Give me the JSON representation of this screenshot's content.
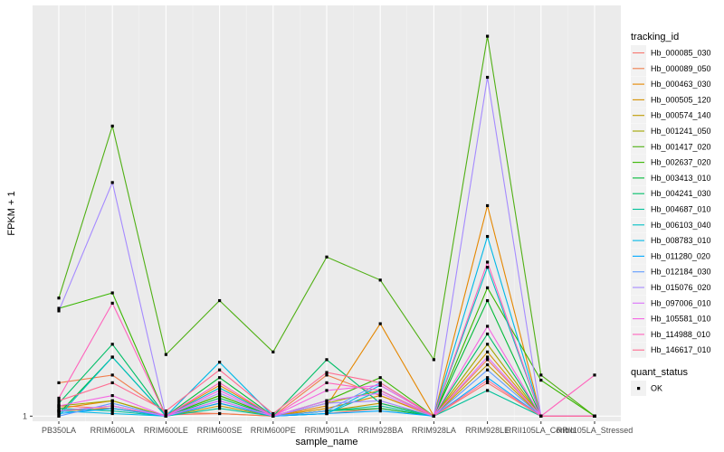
{
  "chart_data": {
    "type": "line",
    "title": "",
    "xlabel": "sample_name",
    "ylabel": "FPKM + 1",
    "y_tick_labels": [
      {
        "value": 1,
        "label": "1"
      }
    ],
    "ylim": [
      0.8,
      17.0
    ],
    "grid": true,
    "legend_placement": "right",
    "categories": [
      "PB350LA",
      "RRIM600LA",
      "RRIM600LE",
      "RRIM600SE",
      "RRIM600PE",
      "RRIM901LA",
      "RRIM928BA",
      "RRIM928LA",
      "RRIM928LE",
      "RRII105LA_Control",
      "RRII105LA_Stressed"
    ],
    "legend": {
      "color_title": "tracking_id",
      "shape_title": "quant_status",
      "shape_entries": [
        "OK"
      ]
    },
    "series": [
      {
        "name": "Hb_000085_030",
        "color": "#F8766D",
        "values": [
          1.4,
          1.3,
          1.05,
          1.1,
          1.0,
          1.1,
          1.3,
          1.0,
          2.3,
          1.0,
          1.0
        ]
      },
      {
        "name": "Hb_000089_050",
        "color": "#F07E4E",
        "values": [
          2.3,
          2.6,
          1.15,
          1.1,
          1.0,
          2.6,
          1.8,
          1.0,
          3.2,
          1.0,
          1.0
        ]
      },
      {
        "name": "Hb_000463_030",
        "color": "#E58700",
        "values": [
          1.3,
          1.6,
          1.0,
          2.2,
          1.0,
          1.4,
          4.6,
          1.0,
          9.2,
          1.0,
          1.0
        ]
      },
      {
        "name": "Hb_000505_120",
        "color": "#D59000",
        "values": [
          1.2,
          1.3,
          1.0,
          1.5,
          1.0,
          1.3,
          1.8,
          1.0,
          3.5,
          1.0,
          1.0
        ]
      },
      {
        "name": "Hb_000574_140",
        "color": "#BF9A00",
        "values": [
          1.2,
          1.4,
          1.0,
          1.4,
          1.0,
          1.2,
          1.5,
          1.0,
          3.0,
          1.0,
          1.0
        ]
      },
      {
        "name": "Hb_001241_050",
        "color": "#A3A500",
        "values": [
          1.4,
          1.6,
          1.0,
          1.8,
          1.0,
          1.5,
          2.0,
          1.0,
          3.8,
          1.0,
          1.0
        ]
      },
      {
        "name": "Hb_001417_020",
        "color": "#50B014",
        "values": [
          5.6,
          12.3,
          3.4,
          5.5,
          3.5,
          7.2,
          6.3,
          3.2,
          15.8,
          2.6,
          1.0
        ]
      },
      {
        "name": "Hb_002637_020",
        "color": "#39B600",
        "values": [
          5.2,
          5.8,
          1.0,
          1.8,
          1.0,
          1.6,
          2.5,
          1.0,
          6.0,
          2.4,
          1.0
        ]
      },
      {
        "name": "Hb_003413_010",
        "color": "#00BA38",
        "values": [
          1.1,
          3.3,
          1.0,
          2.5,
          1.0,
          1.2,
          1.3,
          1.0,
          5.5,
          1.0,
          1.0
        ]
      },
      {
        "name": "Hb_004241_030",
        "color": "#00BE67",
        "values": [
          1.5,
          3.8,
          1.0,
          1.7,
          1.0,
          3.2,
          1.5,
          1.0,
          4.2,
          1.0,
          1.0
        ]
      },
      {
        "name": "Hb_004687_010",
        "color": "#00C19A",
        "values": [
          1.3,
          1.2,
          1.0,
          1.3,
          1.0,
          1.2,
          1.4,
          1.0,
          2.0,
          1.0,
          1.0
        ]
      },
      {
        "name": "Hb_006103_040",
        "color": "#00BFC4",
        "values": [
          1.0,
          3.3,
          1.0,
          2.1,
          1.0,
          1.1,
          2.0,
          1.0,
          6.8,
          1.0,
          1.0
        ]
      },
      {
        "name": "Hb_008783_010",
        "color": "#00B8E7",
        "values": [
          1.2,
          1.1,
          1.0,
          3.1,
          1.0,
          1.1,
          2.2,
          1.0,
          8.0,
          1.0,
          1.0
        ]
      },
      {
        "name": "Hb_011280_020",
        "color": "#00A9FF",
        "values": [
          1.1,
          1.3,
          1.0,
          1.5,
          1.0,
          1.1,
          1.2,
          1.0,
          2.5,
          1.0,
          1.0
        ]
      },
      {
        "name": "Hb_012184_030",
        "color": "#619CFF",
        "values": [
          1.0,
          1.5,
          1.0,
          1.6,
          1.0,
          1.2,
          2.3,
          1.0,
          2.8,
          1.0,
          1.0
        ]
      },
      {
        "name": "Hb_015076_020",
        "color": "#A58AFF",
        "values": [
          5.1,
          10.1,
          1.0,
          1.9,
          1.0,
          1.5,
          1.6,
          1.0,
          14.2,
          1.0,
          1.0
        ]
      },
      {
        "name": "Hb_097006_010",
        "color": "#DB72FB",
        "values": [
          1.2,
          1.4,
          1.0,
          1.6,
          1.0,
          1.6,
          1.9,
          1.0,
          3.3,
          1.0,
          1.0
        ]
      },
      {
        "name": "Hb_105581_010",
        "color": "#F564E3",
        "values": [
          1.4,
          1.8,
          1.0,
          2.0,
          1.0,
          2.0,
          2.2,
          1.0,
          4.5,
          1.0,
          1.0
        ]
      },
      {
        "name": "Hb_114988_010",
        "color": "#FF62BC",
        "values": [
          1.7,
          5.4,
          1.0,
          2.3,
          1.0,
          2.3,
          2.0,
          1.0,
          7.0,
          1.0,
          2.6
        ]
      },
      {
        "name": "Hb_146617_010",
        "color": "#FF6C91",
        "values": [
          1.6,
          2.3,
          1.2,
          2.8,
          1.1,
          2.7,
          2.3,
          1.0,
          2.4,
          1.0,
          1.0
        ]
      }
    ]
  }
}
